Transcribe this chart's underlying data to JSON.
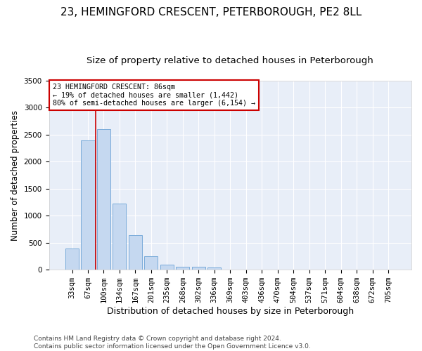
{
  "title": "23, HEMINGFORD CRESCENT, PETERBOROUGH, PE2 8LL",
  "subtitle": "Size of property relative to detached houses in Peterborough",
  "xlabel": "Distribution of detached houses by size in Peterborough",
  "ylabel": "Number of detached properties",
  "categories": [
    "33sqm",
    "67sqm",
    "100sqm",
    "134sqm",
    "167sqm",
    "201sqm",
    "235sqm",
    "268sqm",
    "302sqm",
    "336sqm",
    "369sqm",
    "403sqm",
    "436sqm",
    "470sqm",
    "504sqm",
    "537sqm",
    "571sqm",
    "604sqm",
    "638sqm",
    "672sqm",
    "705sqm"
  ],
  "values": [
    390,
    2400,
    2600,
    1230,
    635,
    255,
    95,
    60,
    55,
    40,
    0,
    0,
    0,
    0,
    0,
    0,
    0,
    0,
    0,
    0,
    0
  ],
  "bar_color": "#c5d8f0",
  "bar_edgecolor": "#7aabda",
  "background_color": "#e8eef8",
  "grid_color": "#ffffff",
  "vline_x": 1.5,
  "vline_color": "#cc0000",
  "annotation_text": "23 HEMINGFORD CRESCENT: 86sqm\n← 19% of detached houses are smaller (1,442)\n80% of semi-detached houses are larger (6,154) →",
  "annotation_box_color": "#cc0000",
  "annotation_text_color": "#000000",
  "ylim": [
    0,
    3500
  ],
  "yticks": [
    0,
    500,
    1000,
    1500,
    2000,
    2500,
    3000,
    3500
  ],
  "footer": "Contains HM Land Registry data © Crown copyright and database right 2024.\nContains public sector information licensed under the Open Government Licence v3.0.",
  "title_fontsize": 11,
  "subtitle_fontsize": 9.5,
  "ylabel_fontsize": 8.5,
  "xlabel_fontsize": 9,
  "tick_fontsize": 7.5,
  "footer_fontsize": 6.5
}
